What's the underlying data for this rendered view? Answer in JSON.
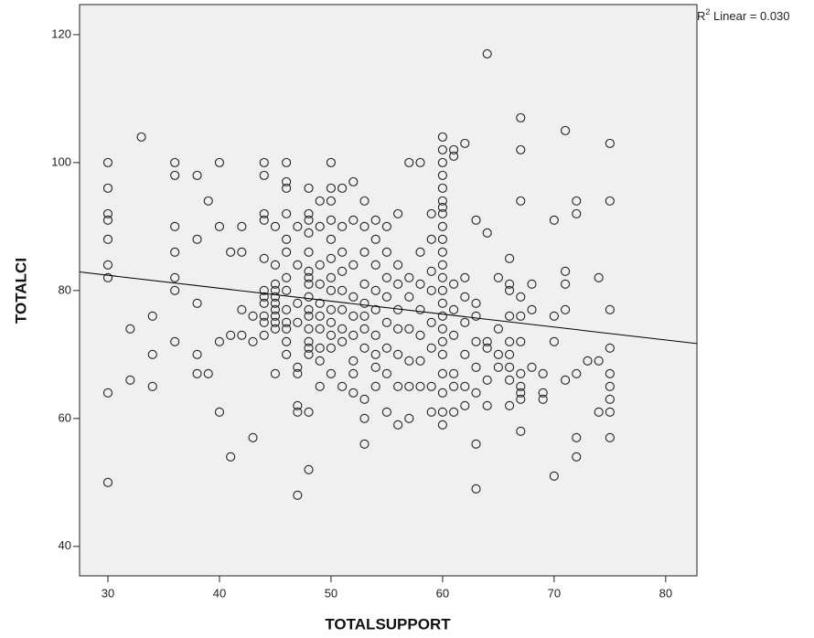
{
  "chart_data": {
    "type": "scatter",
    "x_label": "TOTALSUPPORT",
    "y_label": "TOTALCI",
    "annotation": {
      "base": "R",
      "sup": "2",
      "text": " Linear = 0.030"
    },
    "xlim": [
      27.46,
      82.8
    ],
    "ylim": [
      35.4,
      124.7
    ],
    "xticks": [
      30,
      40,
      50,
      60,
      70,
      80
    ],
    "yticks": [
      40,
      60,
      80,
      100,
      120
    ],
    "plot_background": "#f0f0f0",
    "marker_color": "#222222",
    "line_color": "#000000",
    "fit_line": {
      "x": [
        27.46,
        82.8
      ],
      "values": [
        82.9,
        71.7
      ]
    },
    "x": [
      30,
      30,
      30,
      30,
      30,
      30,
      30,
      30,
      30,
      32,
      32,
      33,
      34,
      34,
      34,
      36,
      36,
      36,
      36,
      36,
      36,
      36,
      38,
      38,
      38,
      38,
      38,
      39,
      39,
      40,
      40,
      40,
      40,
      41,
      41,
      41,
      42,
      42,
      42,
      42,
      43,
      43,
      43,
      44,
      44,
      44,
      44,
      44,
      44,
      44,
      44,
      44,
      44,
      44,
      45,
      45,
      45,
      45,
      45,
      45,
      45,
      45,
      45,
      45,
      45,
      46,
      46,
      46,
      46,
      46,
      46,
      46,
      46,
      46,
      46,
      46,
      46,
      46,
      47,
      47,
      47,
      47,
      47,
      47,
      47,
      47,
      47,
      48,
      48,
      48,
      48,
      48,
      48,
      48,
      48,
      48,
      48,
      48,
      48,
      48,
      48,
      48,
      48,
      48,
      49,
      49,
      49,
      49,
      49,
      49,
      49,
      49,
      49,
      49,
      50,
      50,
      50,
      50,
      50,
      50,
      50,
      50,
      50,
      50,
      50,
      50,
      50,
      51,
      51,
      51,
      51,
      51,
      51,
      51,
      51,
      51,
      52,
      52,
      52,
      52,
      52,
      52,
      52,
      52,
      52,
      53,
      53,
      53,
      53,
      53,
      53,
      53,
      53,
      53,
      53,
      53,
      54,
      54,
      54,
      54,
      54,
      54,
      54,
      54,
      54,
      55,
      55,
      55,
      55,
      55,
      55,
      55,
      55,
      56,
      56,
      56,
      56,
      56,
      56,
      56,
      56,
      57,
      57,
      57,
      57,
      57,
      57,
      57,
      58,
      58,
      58,
      58,
      58,
      58,
      58,
      59,
      59,
      59,
      59,
      59,
      59,
      59,
      59,
      60,
      60,
      60,
      60,
      60,
      60,
      60,
      60,
      60,
      60,
      60,
      60,
      60,
      60,
      60,
      60,
      60,
      60,
      60,
      60,
      60,
      60,
      60,
      61,
      61,
      61,
      61,
      61,
      61,
      61,
      61,
      62,
      62,
      62,
      62,
      62,
      62,
      62,
      63,
      63,
      63,
      63,
      63,
      63,
      63,
      63,
      64,
      64,
      64,
      64,
      64,
      64,
      65,
      65,
      65,
      65,
      66,
      66,
      66,
      66,
      66,
      66,
      66,
      66,
      66,
      67,
      67,
      67,
      67,
      67,
      67,
      67,
      67,
      67,
      67,
      67,
      68,
      68,
      68,
      69,
      69,
      69,
      70,
      70,
      70,
      70,
      71,
      71,
      71,
      71,
      71,
      72,
      72,
      72,
      72,
      72,
      73,
      74,
      74,
      74,
      75,
      75,
      75,
      75,
      75,
      75,
      75,
      75,
      75
    ],
    "values": [
      100,
      96,
      92,
      91,
      88,
      84,
      82,
      64,
      50,
      74,
      66,
      104,
      76,
      70,
      65,
      100,
      98,
      90,
      86,
      82,
      80,
      72,
      98,
      88,
      78,
      70,
      67,
      94,
      67,
      100,
      90,
      61,
      72,
      86,
      54,
      73,
      86,
      90,
      73,
      77,
      72,
      76,
      57,
      100,
      98,
      92,
      91,
      85,
      80,
      78,
      76,
      73,
      79,
      75,
      90,
      84,
      81,
      80,
      79,
      78,
      77,
      76,
      75,
      74,
      67,
      100,
      97,
      96,
      92,
      88,
      86,
      82,
      80,
      77,
      75,
      74,
      72,
      70,
      90,
      84,
      78,
      75,
      68,
      67,
      62,
      61,
      48,
      96,
      92,
      91,
      89,
      86,
      83,
      82,
      81,
      79,
      77,
      76,
      74,
      72,
      71,
      70,
      61,
      52,
      94,
      90,
      84,
      81,
      78,
      76,
      74,
      71,
      69,
      65,
      100,
      96,
      94,
      91,
      88,
      85,
      82,
      80,
      77,
      75,
      73,
      71,
      67,
      96,
      90,
      86,
      83,
      80,
      77,
      74,
      72,
      65,
      97,
      91,
      84,
      79,
      76,
      73,
      69,
      67,
      64,
      94,
      90,
      86,
      81,
      78,
      76,
      74,
      71,
      63,
      60,
      56,
      91,
      88,
      84,
      80,
      77,
      73,
      70,
      68,
      65,
      90,
      86,
      82,
      79,
      75,
      71,
      67,
      61,
      92,
      84,
      81,
      77,
      74,
      70,
      65,
      59,
      100,
      82,
      79,
      74,
      69,
      65,
      60,
      100,
      86,
      81,
      77,
      73,
      69,
      65,
      92,
      88,
      83,
      80,
      75,
      71,
      65,
      61,
      104,
      102,
      100,
      98,
      96,
      94,
      93,
      92,
      90,
      88,
      86,
      84,
      82,
      80,
      78,
      76,
      74,
      72,
      70,
      67,
      64,
      61,
      59,
      102,
      101,
      81,
      77,
      73,
      67,
      65,
      61,
      103,
      82,
      79,
      75,
      70,
      65,
      62,
      91,
      78,
      76,
      72,
      68,
      64,
      56,
      49,
      117,
      89,
      71,
      72,
      66,
      62,
      82,
      74,
      70,
      68,
      85,
      81,
      80,
      76,
      72,
      70,
      68,
      66,
      62,
      107,
      102,
      94,
      79,
      76,
      72,
      67,
      65,
      64,
      63,
      58,
      81,
      77,
      68,
      67,
      64,
      63,
      91,
      76,
      72,
      51,
      105,
      83,
      81,
      77,
      66,
      94,
      92,
      67,
      57,
      54,
      69,
      82,
      69,
      61,
      103,
      94,
      77,
      71,
      67,
      65,
      63,
      61,
      57
    ]
  }
}
